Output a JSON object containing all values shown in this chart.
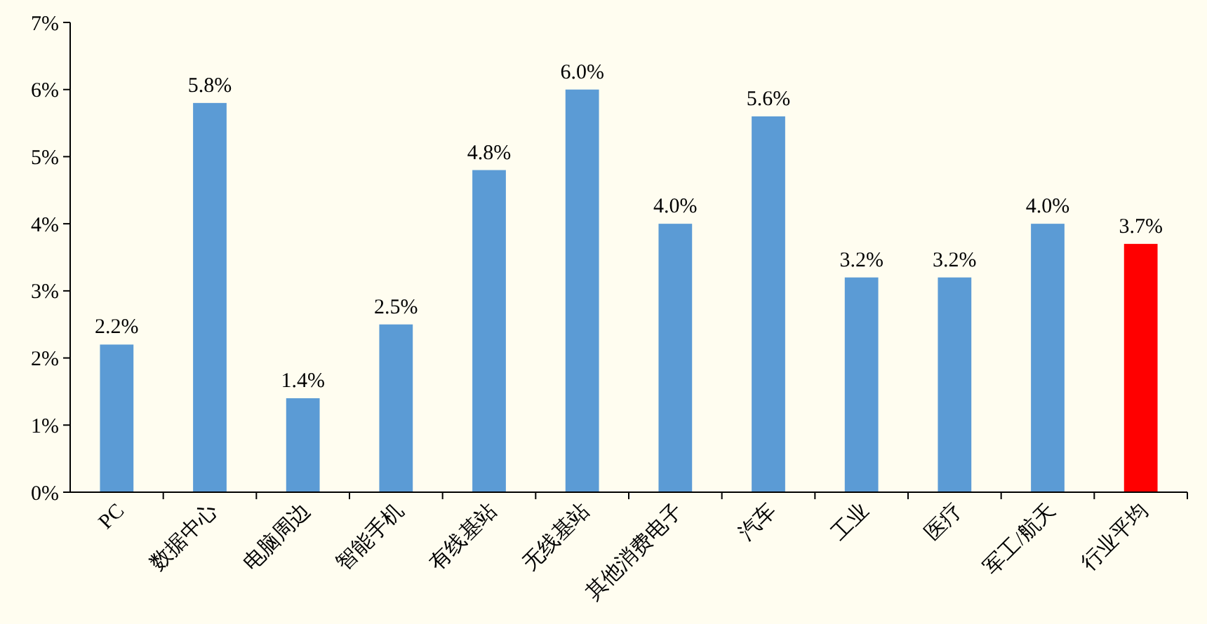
{
  "chart_data": {
    "type": "bar",
    "categories": [
      "PC",
      "数据中心",
      "电脑周边",
      "智能手机",
      "有线基站",
      "无线基站",
      "其他消费电子",
      "汽车",
      "工业",
      "医疗",
      "军工/航天",
      "行业平均"
    ],
    "values": [
      2.2,
      5.8,
      1.4,
      2.5,
      4.8,
      6.0,
      4.0,
      5.6,
      3.2,
      3.2,
      4.0,
      3.7
    ],
    "colors": [
      "#5b9bd5",
      "#5b9bd5",
      "#5b9bd5",
      "#5b9bd5",
      "#5b9bd5",
      "#5b9bd5",
      "#5b9bd5",
      "#5b9bd5",
      "#5b9bd5",
      "#5b9bd5",
      "#5b9bd5",
      "#ff0000"
    ],
    "value_labels": [
      "2.2%",
      "5.8%",
      "1.4%",
      "2.5%",
      "4.8%",
      "6.0%",
      "4.0%",
      "5.6%",
      "3.2%",
      "3.2%",
      "4.0%",
      "3.7%"
    ],
    "ylim": [
      0,
      7
    ],
    "yticks": [
      {
        "value": 0,
        "label": "0%"
      },
      {
        "value": 1,
        "label": "1%"
      },
      {
        "value": 2,
        "label": "2%"
      },
      {
        "value": 3,
        "label": "3%"
      },
      {
        "value": 4,
        "label": "4%"
      },
      {
        "value": 5,
        "label": "5%"
      },
      {
        "value": 6,
        "label": "6%"
      },
      {
        "value": 7,
        "label": "7%"
      }
    ],
    "grid": false
  }
}
